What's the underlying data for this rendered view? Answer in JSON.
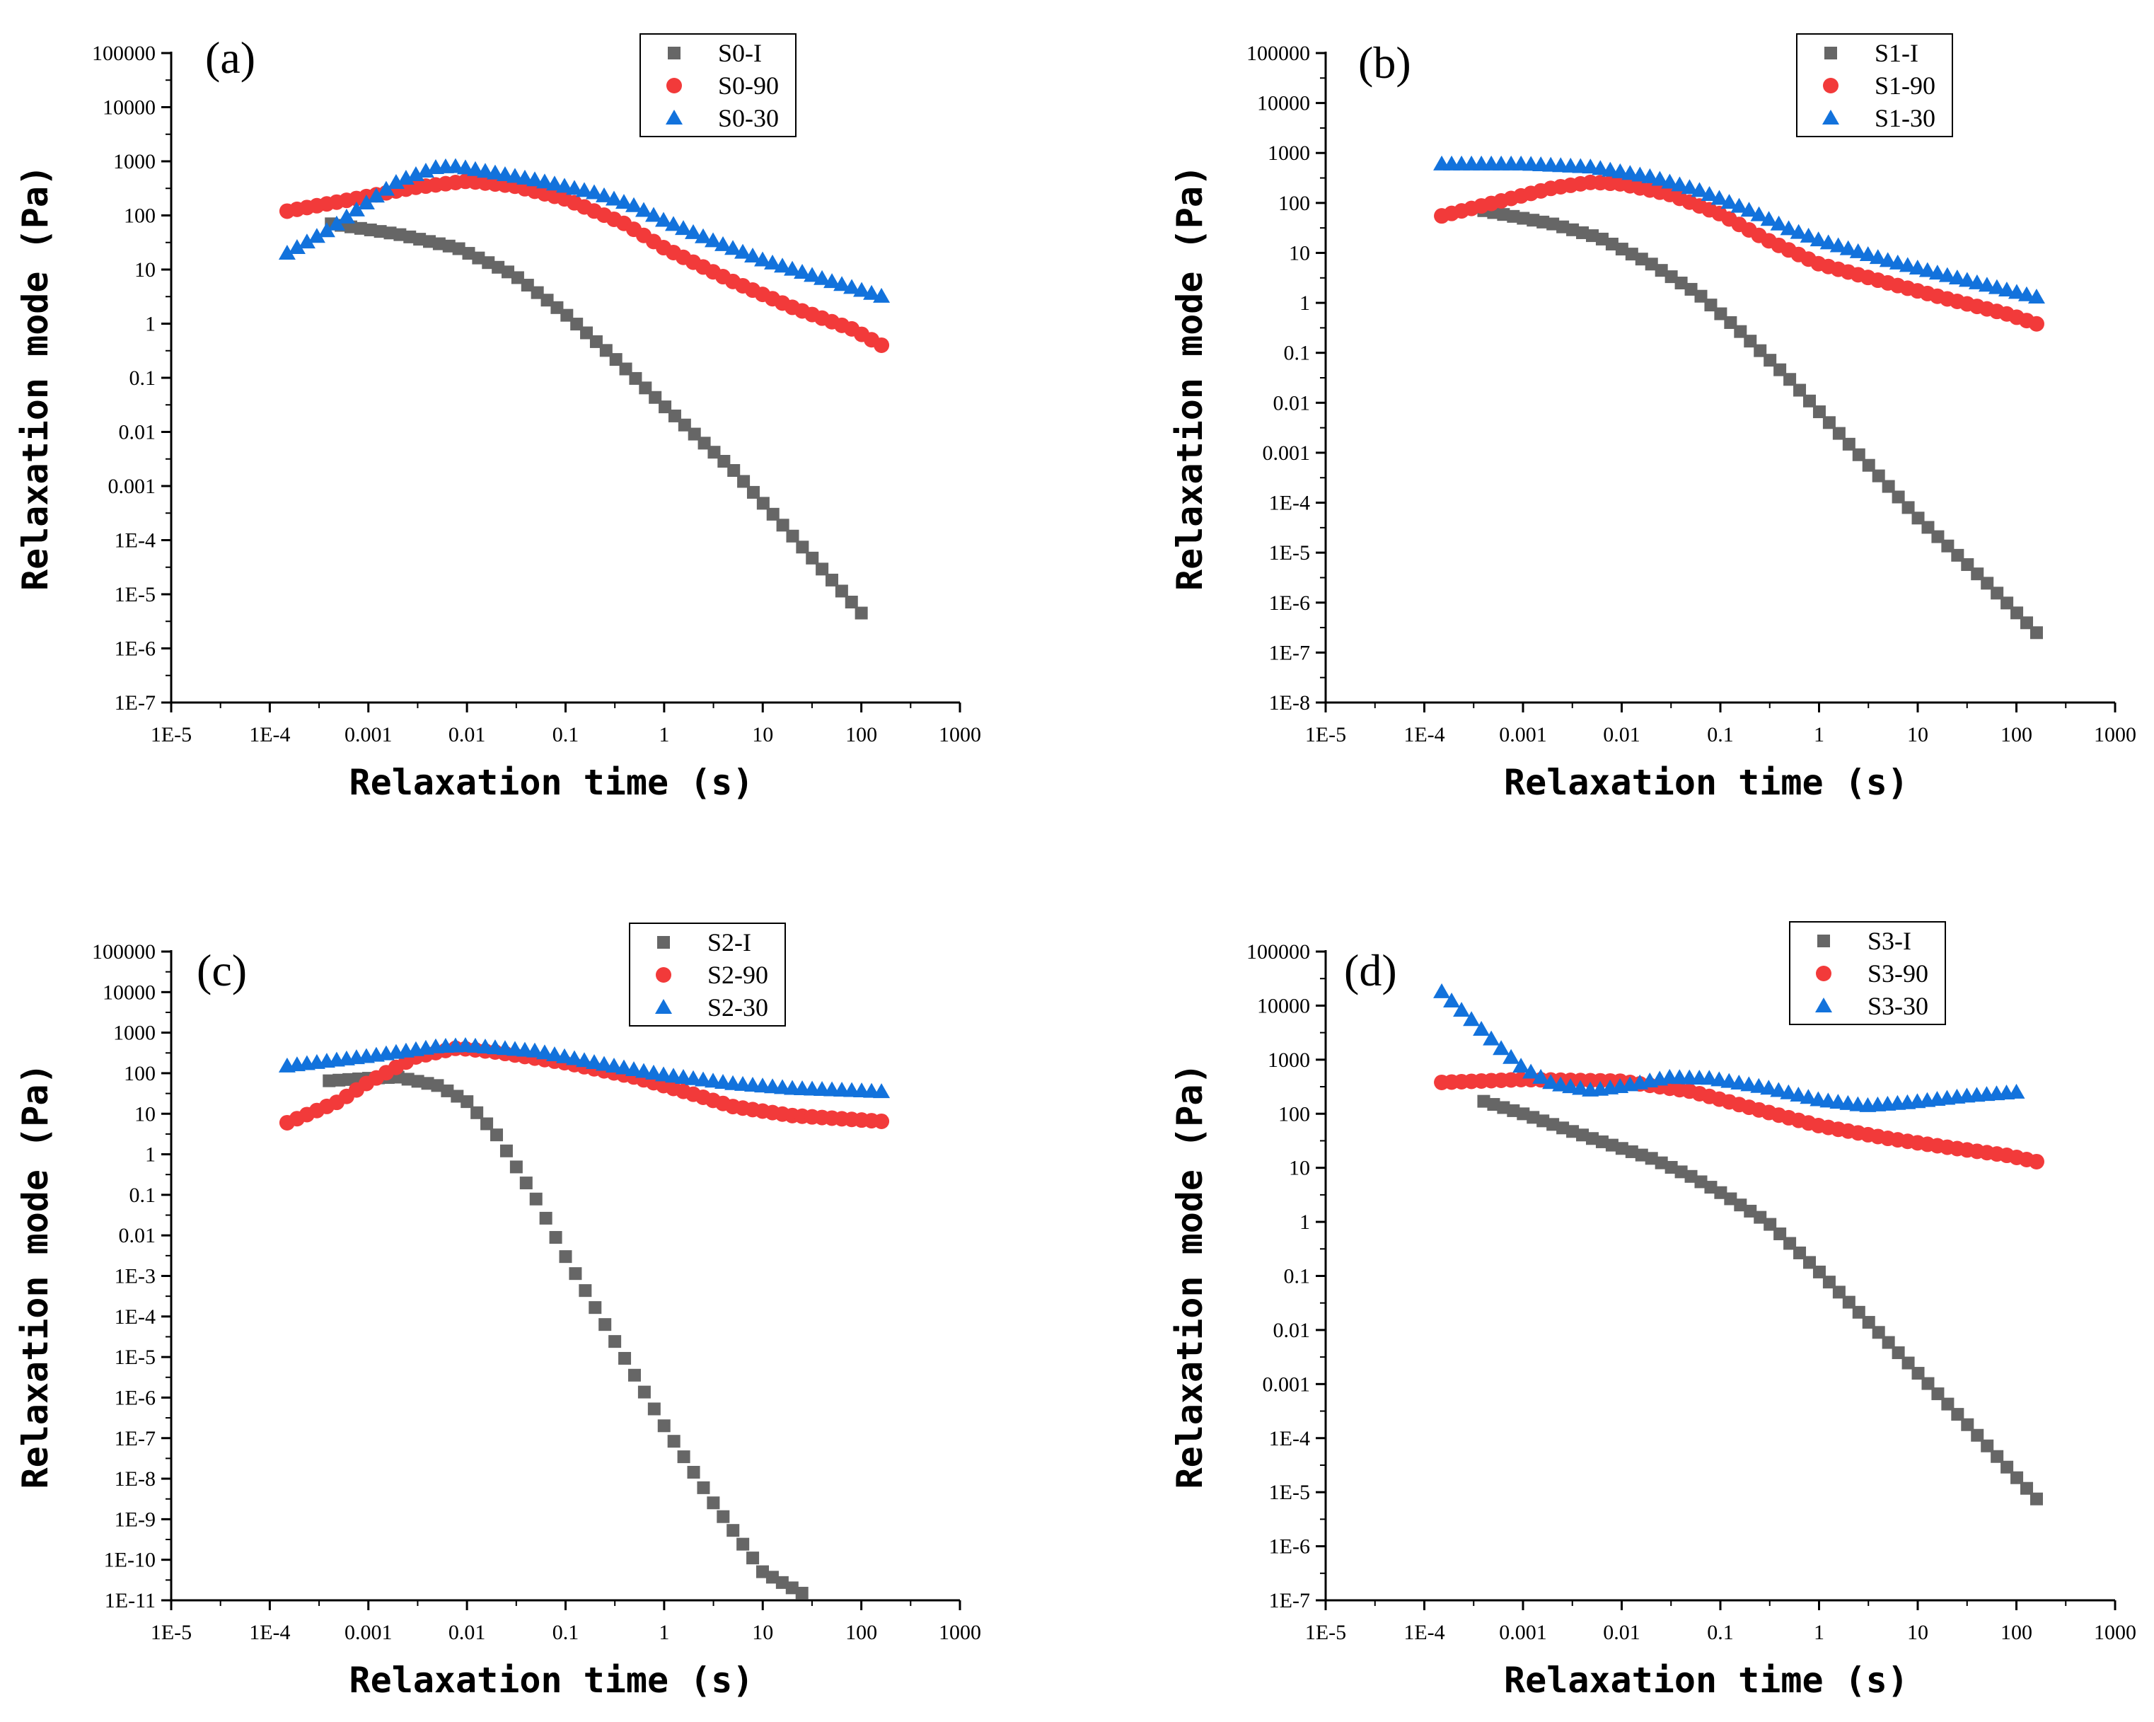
{
  "colors": {
    "series_I": "#666666",
    "series_90": "#f23a3a",
    "series_30": "#1272dc"
  },
  "chart_data": [
    {
      "type": "scatter",
      "panel_label": "(a)",
      "xlabel": "Relaxation time (s)",
      "ylabel": "Relaxation mode (Pa)",
      "xscale": "log",
      "yscale": "log",
      "xlim": [
        1e-05,
        1000
      ],
      "ylim": [
        1e-07,
        100000
      ],
      "x_ticks": [
        1e-05,
        0.0001,
        0.001,
        0.01,
        0.1,
        1,
        10,
        100,
        1000
      ],
      "x_tick_labels": [
        "1E-5",
        "1E-4",
        "0.001",
        "0.01",
        "0.1",
        "1",
        "10",
        "100",
        "1000"
      ],
      "y_ticks": [
        1e-07,
        1e-06,
        1e-05,
        0.0001,
        0.001,
        0.01,
        0.1,
        1,
        10,
        100,
        1000,
        10000,
        100000
      ],
      "y_tick_labels": [
        "1E-7",
        "1E-6",
        "1E-5",
        "1E-4",
        "0.001",
        "0.01",
        "0.1",
        "1",
        "10",
        "100",
        "1000",
        "10000",
        "100000"
      ],
      "legend": [
        "S0-I",
        "S0-90",
        "S0-30"
      ],
      "series": [
        {
          "name": "S0-I",
          "marker": "square",
          "x_range": [
            0.00042,
            100
          ],
          "y_anchors": [
            [
              0.00042,
              70
            ],
            [
              0.002,
              45
            ],
            [
              0.008,
              25
            ],
            [
              0.03,
              8
            ],
            [
              0.1,
              1.5
            ],
            [
              0.3,
              0.25
            ],
            [
              1,
              0.03
            ],
            [
              5,
              0.002
            ],
            [
              20,
              0.00012
            ],
            [
              100,
              4.5e-06
            ]
          ]
        },
        {
          "name": "S0-90",
          "marker": "circle",
          "x_range": [
            0.00015,
            160
          ],
          "y_anchors": [
            [
              0.00015,
              120
            ],
            [
              0.0007,
              200
            ],
            [
              0.003,
              330
            ],
            [
              0.01,
              430
            ],
            [
              0.03,
              350
            ],
            [
              0.1,
              200
            ],
            [
              0.4,
              70
            ],
            [
              1,
              25
            ],
            [
              5,
              6
            ],
            [
              20,
              2
            ],
            [
              80,
              0.8
            ],
            [
              160,
              0.4
            ]
          ]
        },
        {
          "name": "S0-30",
          "marker": "triangle",
          "x_range": [
            0.00015,
            160
          ],
          "y_anchors": [
            [
              0.00015,
              20
            ],
            [
              0.0004,
              55
            ],
            [
              0.001,
              180
            ],
            [
              0.002,
              430
            ],
            [
              0.005,
              780
            ],
            [
              0.008,
              800
            ],
            [
              0.02,
              600
            ],
            [
              0.05,
              450
            ],
            [
              0.2,
              260
            ],
            [
              0.5,
              150
            ],
            [
              1,
              80
            ],
            [
              3,
              35
            ],
            [
              10,
              15
            ],
            [
              50,
              6
            ],
            [
              160,
              3.2
            ]
          ]
        }
      ]
    },
    {
      "type": "scatter",
      "panel_label": "(b)",
      "xlabel": "Relaxation time (s)",
      "ylabel": "Relaxation mode (Pa)",
      "xscale": "log",
      "yscale": "log",
      "xlim": [
        1e-05,
        1000
      ],
      "ylim": [
        1e-08,
        100000
      ],
      "x_ticks": [
        1e-05,
        0.0001,
        0.001,
        0.01,
        0.1,
        1,
        10,
        100,
        1000
      ],
      "x_tick_labels": [
        "1E-5",
        "1E-4",
        "0.001",
        "0.01",
        "0.1",
        "1",
        "10",
        "100",
        "1000"
      ],
      "y_ticks": [
        1e-08,
        1e-07,
        1e-06,
        1e-05,
        0.0001,
        0.001,
        0.01,
        0.1,
        1,
        10,
        100,
        1000,
        10000,
        100000
      ],
      "y_tick_labels": [
        "1E-8",
        "1E-7",
        "1E-6",
        "1E-5",
        "1E-4",
        "0.001",
        "0.01",
        "0.1",
        "1",
        "10",
        "100",
        "1000",
        "10000",
        "100000"
      ],
      "legend": [
        "S1-I",
        "S1-90",
        "S1-30"
      ],
      "series": [
        {
          "name": "S1-I",
          "marker": "square",
          "x_range": [
            0.0004,
            160
          ],
          "y_anchors": [
            [
              0.0004,
              70
            ],
            [
              0.002,
              38
            ],
            [
              0.006,
              20
            ],
            [
              0.02,
              6
            ],
            [
              0.06,
              1.5
            ],
            [
              0.15,
              0.3
            ],
            [
              0.5,
              0.03
            ],
            [
              2,
              0.0015
            ],
            [
              10,
              5e-05
            ],
            [
              50,
              2.5e-06
            ],
            [
              160,
              2.5e-07
            ]
          ]
        },
        {
          "name": "S1-90",
          "marker": "circle",
          "x_range": [
            0.00015,
            160
          ],
          "y_anchors": [
            [
              0.00015,
              55
            ],
            [
              0.0005,
              100
            ],
            [
              0.002,
              200
            ],
            [
              0.005,
              260
            ],
            [
              0.01,
              240
            ],
            [
              0.03,
              150
            ],
            [
              0.1,
              60
            ],
            [
              0.3,
              18
            ],
            [
              1,
              6
            ],
            [
              5,
              2.5
            ],
            [
              20,
              1.2
            ],
            [
              80,
              0.6
            ],
            [
              160,
              0.38
            ]
          ]
        },
        {
          "name": "S1-30",
          "marker": "triangle",
          "x_range": [
            0.00015,
            160
          ],
          "y_anchors": [
            [
              0.00015,
              600
            ],
            [
              0.001,
              600
            ],
            [
              0.005,
              520
            ],
            [
              0.02,
              330
            ],
            [
              0.06,
              180
            ],
            [
              0.2,
              70
            ],
            [
              0.5,
              30
            ],
            [
              1,
              18
            ],
            [
              5,
              7
            ],
            [
              20,
              3.5
            ],
            [
              80,
              1.8
            ],
            [
              160,
              1.3
            ]
          ]
        }
      ]
    },
    {
      "type": "scatter",
      "panel_label": "(c)",
      "xlabel": "Relaxation time (s)",
      "ylabel": "Relaxation mode (Pa)",
      "xscale": "log",
      "yscale": "log",
      "xlim": [
        1e-05,
        1000
      ],
      "ylim": [
        1e-11,
        100000
      ],
      "x_ticks": [
        1e-05,
        0.0001,
        0.001,
        0.01,
        0.1,
        1,
        10,
        100,
        1000
      ],
      "x_tick_labels": [
        "1E-5",
        "1E-4",
        "0.001",
        "0.01",
        "0.1",
        "1",
        "10",
        "100",
        "1000"
      ],
      "y_ticks": [
        1e-11,
        1e-10,
        1e-09,
        1e-08,
        1e-07,
        1e-06,
        1e-05,
        0.0001,
        0.001,
        0.01,
        0.1,
        1,
        10,
        100,
        1000,
        10000,
        100000
      ],
      "y_tick_labels": [
        "1E-11",
        "1E-10",
        "1E-9",
        "1E-8",
        "1E-7",
        "1E-6",
        "1E-5",
        "1E-4",
        "1E-3",
        "0.01",
        "0.1",
        "1",
        "10",
        "100",
        "1000",
        "10000",
        "100000"
      ],
      "legend": [
        "S2-I",
        "S2-90",
        "S2-30"
      ],
      "series": [
        {
          "name": "S2-I",
          "marker": "square",
          "x_range": [
            0.0004,
            25
          ],
          "y_anchors": [
            [
              0.0004,
              65
            ],
            [
              0.001,
              75
            ],
            [
              0.002,
              80
            ],
            [
              0.005,
              50
            ],
            [
              0.01,
              20
            ],
            [
              0.02,
              3
            ],
            [
              0.05,
              0.08
            ],
            [
              0.1,
              0.003
            ],
            [
              0.3,
              3e-05
            ],
            [
              1,
              2e-07
            ],
            [
              3,
              3e-09
            ],
            [
              10,
              5e-11
            ],
            [
              25,
              1.5e-11
            ]
          ]
        },
        {
          "name": "S2-90",
          "marker": "circle",
          "x_range": [
            0.00015,
            160
          ],
          "y_anchors": [
            [
              0.00015,
              6
            ],
            [
              0.0005,
              20
            ],
            [
              0.001,
              60
            ],
            [
              0.003,
              250
            ],
            [
              0.008,
              420
            ],
            [
              0.02,
              330
            ],
            [
              0.1,
              180
            ],
            [
              0.5,
              80
            ],
            [
              2,
              30
            ],
            [
              5,
              15
            ],
            [
              20,
              9
            ],
            [
              160,
              6.5
            ]
          ]
        },
        {
          "name": "S2-30",
          "marker": "triangle",
          "x_range": [
            0.00015,
            160
          ],
          "y_anchors": [
            [
              0.00015,
              150
            ],
            [
              0.001,
              260
            ],
            [
              0.005,
              450
            ],
            [
              0.01,
              480
            ],
            [
              0.05,
              350
            ],
            [
              0.2,
              180
            ],
            [
              1,
              90
            ],
            [
              5,
              55
            ],
            [
              20,
              42
            ],
            [
              160,
              35
            ]
          ]
        }
      ]
    },
    {
      "type": "scatter",
      "panel_label": "(d)",
      "xlabel": "Relaxation time (s)",
      "ylabel": "Relaxation mode (Pa)",
      "xscale": "log",
      "yscale": "log",
      "xlim": [
        1e-05,
        1000
      ],
      "ylim": [
        1e-07,
        100000
      ],
      "x_ticks": [
        1e-05,
        0.0001,
        0.001,
        0.01,
        0.1,
        1,
        10,
        100,
        1000
      ],
      "x_tick_labels": [
        "1E-5",
        "1E-4",
        "0.001",
        "0.01",
        "0.1",
        "1",
        "10",
        "100",
        "1000"
      ],
      "y_ticks": [
        1e-07,
        1e-06,
        1e-05,
        0.0001,
        0.001,
        0.01,
        0.1,
        1,
        10,
        100,
        1000,
        10000,
        100000
      ],
      "y_tick_labels": [
        "1E-7",
        "1E-6",
        "1E-5",
        "1E-4",
        "0.001",
        "0.01",
        "0.1",
        "1",
        "10",
        "100",
        "1000",
        "10000",
        "100000"
      ],
      "legend": [
        "S3-I",
        "S3-90",
        "S3-30"
      ],
      "series": [
        {
          "name": "S3-I",
          "marker": "square",
          "x_range": [
            0.0004,
            160
          ],
          "y_anchors": [
            [
              0.0004,
              170
            ],
            [
              0.001,
              100
            ],
            [
              0.005,
              35
            ],
            [
              0.02,
              15
            ],
            [
              0.05,
              7
            ],
            [
              0.1,
              3.5
            ],
            [
              0.3,
              1
            ],
            [
              1,
              0.12
            ],
            [
              5,
              0.006
            ],
            [
              30,
              0.0002
            ],
            [
              160,
              7.5e-06
            ]
          ]
        },
        {
          "name": "S3-90",
          "marker": "circle",
          "x_range": [
            0.00015,
            160
          ],
          "y_anchors": [
            [
              0.00015,
              380
            ],
            [
              0.001,
              430
            ],
            [
              0.01,
              400
            ],
            [
              0.05,
              260
            ],
            [
              0.2,
              130
            ],
            [
              1,
              60
            ],
            [
              5,
              35
            ],
            [
              20,
              24
            ],
            [
              80,
              17
            ],
            [
              160,
              13
            ]
          ]
        },
        {
          "name": "S3-30",
          "marker": "triangle",
          "x_range": [
            0.00015,
            100
          ],
          "y_anchors": [
            [
              0.00015,
              18000
            ],
            [
              0.0003,
              5500
            ],
            [
              0.0006,
              1600
            ],
            [
              0.001,
              700
            ],
            [
              0.002,
              360
            ],
            [
              0.005,
              270
            ],
            [
              0.01,
              320
            ],
            [
              0.03,
              470
            ],
            [
              0.08,
              450
            ],
            [
              0.3,
              300
            ],
            [
              1,
              180
            ],
            [
              3,
              140
            ],
            [
              8,
              160
            ],
            [
              30,
              210
            ],
            [
              100,
              250
            ]
          ]
        }
      ]
    }
  ]
}
